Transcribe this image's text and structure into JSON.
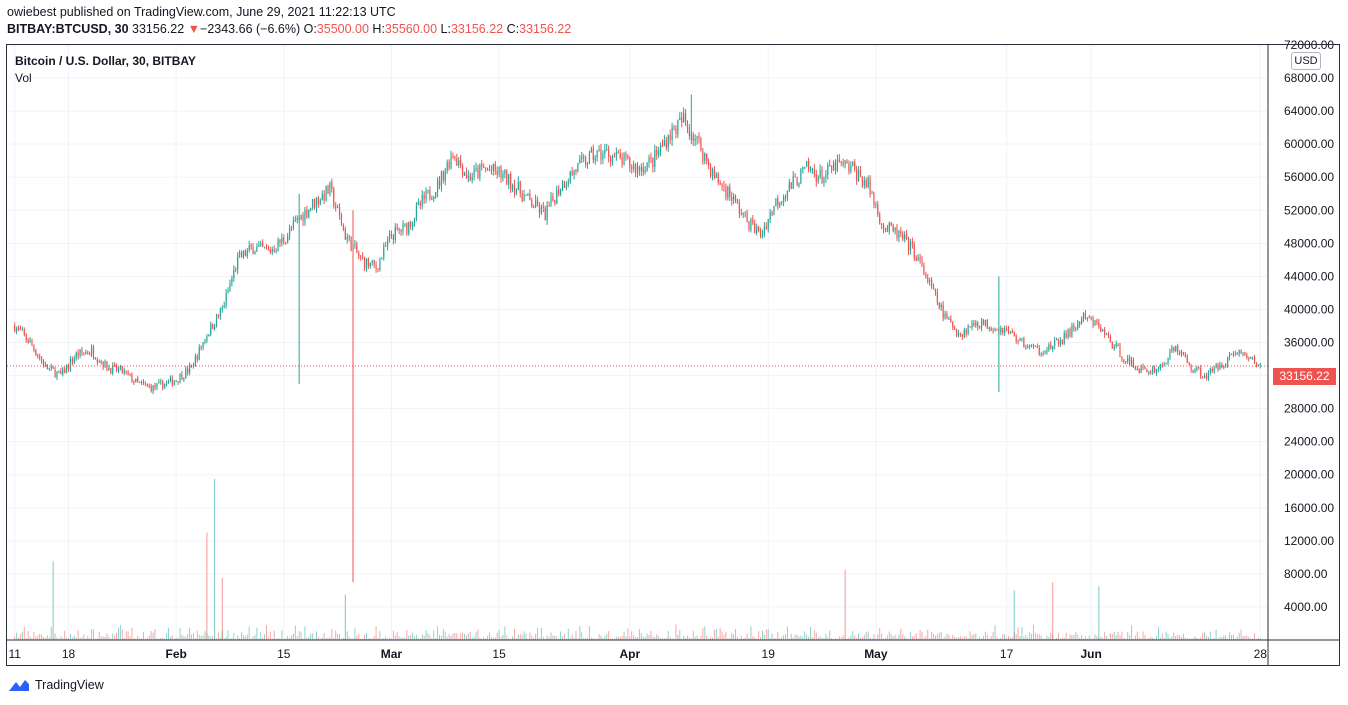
{
  "header": {
    "author": "owiebest",
    "published_text": " published on TradingView.com, June 29, 2021 11:22:13 UTC",
    "symbol": "BITBAY:BTCUSD, 30",
    "last": "33156.22",
    "arrow": "▼",
    "change": "−2343.66 (−6.6%)",
    "o_label": "O:",
    "o": "35500.00",
    "h_label": "H:",
    "h": "35560.00",
    "l_label": "L:",
    "l": "33156.22",
    "c_label": "C:",
    "c": "33156.22"
  },
  "legend": {
    "title": "Bitcoin / U.S. Dollar, 30, BITBAY",
    "volume_label": "Vol"
  },
  "currency_label": "USD",
  "last_price_tag": "33156.22",
  "brand": "TradingView",
  "colors": {
    "up": "#26a69a",
    "down": "#ef5350",
    "grid": "#f0f3fa",
    "text": "#131722"
  },
  "chart_data": {
    "type": "candlestick",
    "title": "Bitcoin / U.S. Dollar, 30, BITBAY",
    "ylabel": "USD",
    "ylim": [
      0,
      72000
    ],
    "y_ticks": [
      "4000.00",
      "8000.00",
      "12000.00",
      "16000.00",
      "20000.00",
      "24000.00",
      "28000.00",
      "32000.00",
      "36000.00",
      "40000.00",
      "44000.00",
      "48000.00",
      "52000.00",
      "56000.00",
      "60000.00",
      "64000.00",
      "68000.00",
      "72000.00"
    ],
    "x_tick_labels": [
      "11",
      "18",
      "Feb",
      "15",
      "Mar",
      "15",
      "Apr",
      "19",
      "May",
      "17",
      "Jun",
      "28"
    ],
    "x_tick_day_index": [
      0,
      7,
      21,
      35,
      49,
      63,
      80,
      98,
      112,
      129,
      140,
      162
    ],
    "x_range_days": [
      -1,
      163
    ],
    "last_price": 33156.22,
    "closes_approx": [
      {
        "day": 0,
        "close": 38000
      },
      {
        "day": 2,
        "close": 36000
      },
      {
        "day": 4,
        "close": 33000
      },
      {
        "day": 6,
        "close": 32000
      },
      {
        "day": 8,
        "close": 34500
      },
      {
        "day": 10,
        "close": 35000
      },
      {
        "day": 12,
        "close": 33000
      },
      {
        "day": 14,
        "close": 32500
      },
      {
        "day": 16,
        "close": 31000
      },
      {
        "day": 18,
        "close": 30500
      },
      {
        "day": 21,
        "close": 31500
      },
      {
        "day": 23,
        "close": 33000
      },
      {
        "day": 25,
        "close": 37000
      },
      {
        "day": 27,
        "close": 40000
      },
      {
        "day": 29,
        "close": 46000
      },
      {
        "day": 31,
        "close": 47500
      },
      {
        "day": 33,
        "close": 47000
      },
      {
        "day": 35,
        "close": 48500
      },
      {
        "day": 37,
        "close": 51000
      },
      {
        "day": 39,
        "close": 53000
      },
      {
        "day": 41,
        "close": 54500
      },
      {
        "day": 43,
        "close": 49000
      },
      {
        "day": 45,
        "close": 46000
      },
      {
        "day": 47,
        "close": 45000
      },
      {
        "day": 49,
        "close": 49000
      },
      {
        "day": 51,
        "close": 50000
      },
      {
        "day": 53,
        "close": 53000
      },
      {
        "day": 55,
        "close": 55000
      },
      {
        "day": 57,
        "close": 59000
      },
      {
        "day": 59,
        "close": 56000
      },
      {
        "day": 61,
        "close": 57000
      },
      {
        "day": 63,
        "close": 56500
      },
      {
        "day": 65,
        "close": 55000
      },
      {
        "day": 67,
        "close": 53000
      },
      {
        "day": 69,
        "close": 51500
      },
      {
        "day": 71,
        "close": 55000
      },
      {
        "day": 73,
        "close": 57000
      },
      {
        "day": 75,
        "close": 58500
      },
      {
        "day": 77,
        "close": 59000
      },
      {
        "day": 79,
        "close": 58000
      },
      {
        "day": 81,
        "close": 57000
      },
      {
        "day": 83,
        "close": 58000
      },
      {
        "day": 85,
        "close": 61000
      },
      {
        "day": 87,
        "close": 63000
      },
      {
        "day": 89,
        "close": 60000
      },
      {
        "day": 91,
        "close": 56000
      },
      {
        "day": 93,
        "close": 54000
      },
      {
        "day": 95,
        "close": 51000
      },
      {
        "day": 97,
        "close": 49000
      },
      {
        "day": 99,
        "close": 53000
      },
      {
        "day": 101,
        "close": 55000
      },
      {
        "day": 103,
        "close": 57000
      },
      {
        "day": 105,
        "close": 56000
      },
      {
        "day": 107,
        "close": 57500
      },
      {
        "day": 109,
        "close": 57000
      },
      {
        "day": 111,
        "close": 55000
      },
      {
        "day": 113,
        "close": 50000
      },
      {
        "day": 115,
        "close": 49000
      },
      {
        "day": 117,
        "close": 47000
      },
      {
        "day": 119,
        "close": 43000
      },
      {
        "day": 121,
        "close": 39000
      },
      {
        "day": 123,
        "close": 37000
      },
      {
        "day": 125,
        "close": 38500
      },
      {
        "day": 127,
        "close": 38000
      },
      {
        "day": 129,
        "close": 37500
      },
      {
        "day": 131,
        "close": 36000
      },
      {
        "day": 133,
        "close": 35000
      },
      {
        "day": 135,
        "close": 35500
      },
      {
        "day": 137,
        "close": 37000
      },
      {
        "day": 139,
        "close": 39000
      },
      {
        "day": 141,
        "close": 38000
      },
      {
        "day": 143,
        "close": 35500
      },
      {
        "day": 145,
        "close": 33500
      },
      {
        "day": 147,
        "close": 32500
      },
      {
        "day": 149,
        "close": 33000
      },
      {
        "day": 151,
        "close": 35500
      },
      {
        "day": 153,
        "close": 33000
      },
      {
        "day": 155,
        "close": 32000
      },
      {
        "day": 157,
        "close": 33500
      },
      {
        "day": 159,
        "close": 35000
      },
      {
        "day": 162,
        "close": 33156.22
      }
    ],
    "notable_wicks": [
      {
        "day": 37,
        "low": 31000,
        "high": 54000
      },
      {
        "day": 44,
        "low": 7000,
        "high": 52000
      },
      {
        "day": 128,
        "low": 30000,
        "high": 44000
      },
      {
        "day": 88,
        "low": 60000,
        "high": 66000
      }
    ],
    "volume_spikes": [
      {
        "day": 5,
        "volume": 9500
      },
      {
        "day": 25,
        "volume": 13000
      },
      {
        "day": 26,
        "volume": 19500
      },
      {
        "day": 27,
        "volume": 7500
      },
      {
        "day": 43,
        "volume": 5500
      },
      {
        "day": 108,
        "volume": 8500
      },
      {
        "day": 130,
        "volume": 6000
      },
      {
        "day": 135,
        "volume": 7000
      },
      {
        "day": 141,
        "volume": 6500
      }
    ]
  }
}
